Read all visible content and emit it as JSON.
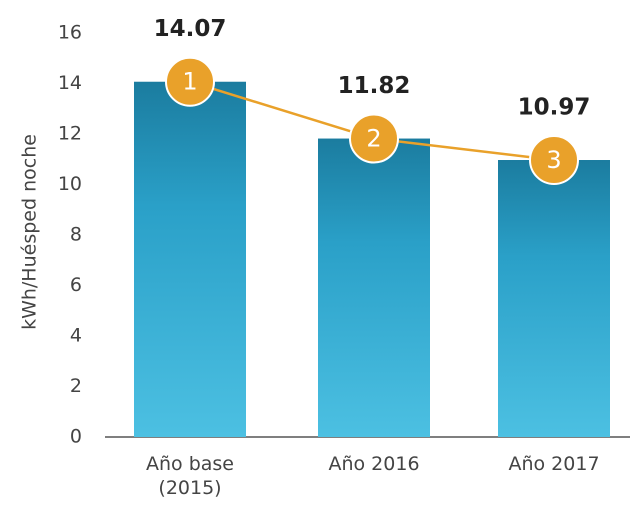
{
  "chart_data": {
    "type": "bar",
    "y_label": "kWh/Huésped noche",
    "categories": [
      "Año base (2015)",
      "Año 2016",
      "Año 2017"
    ],
    "values": [
      14.07,
      11.82,
      10.97
    ],
    "point_labels": [
      1,
      2,
      3
    ],
    "color": "#2a9cc4",
    "marker_color": "#e9a12a",
    "ylim": [
      0,
      16
    ],
    "yticks": [
      0,
      2,
      4,
      6,
      8,
      10,
      12,
      14,
      16
    ],
    "grid": false
  }
}
